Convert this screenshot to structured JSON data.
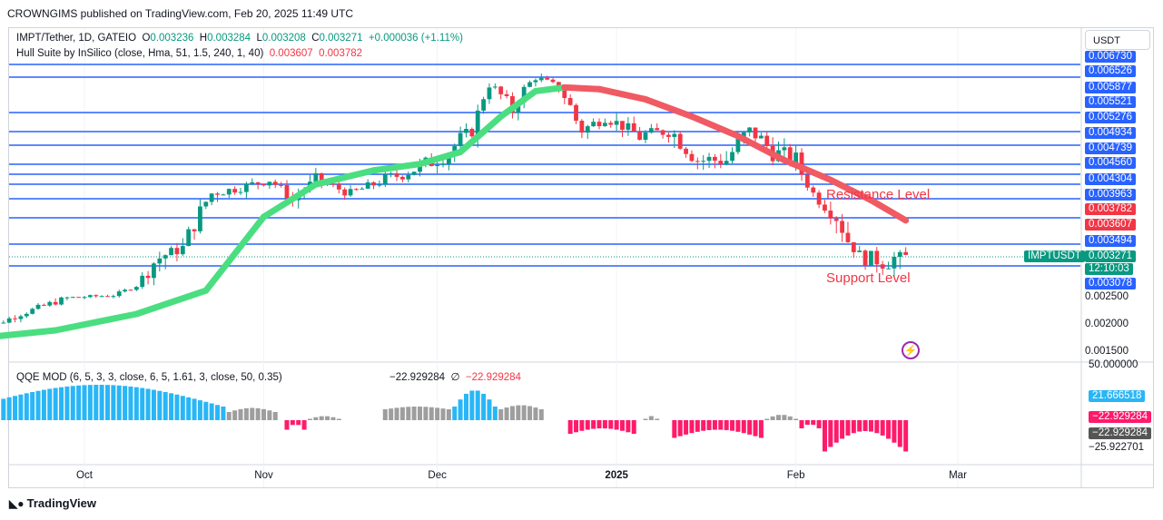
{
  "header": {
    "publisher": "CROWNGIMS published on TradingView.com, Feb 20, 2025 11:49 UTC"
  },
  "legend": {
    "symbol": "IMPT/Tether, 1D, GATEIO",
    "o_label": "O",
    "o": "0.003236",
    "h_label": "H",
    "h": "0.003284",
    "l_label": "L",
    "l": "0.003208",
    "c_label": "C",
    "c": "0.003271",
    "change": "+0.000036 (+1.11%)",
    "indicator": "Hull Suite by InSilico (close, Hma, 51, 1.5, 240, 1, 40)",
    "hull1": "0.003607",
    "hull2": "0.003782"
  },
  "currency_button": "USDT",
  "annotations": {
    "resistance": "Resistance Level",
    "support": "Support Level"
  },
  "qqe": {
    "label": "QQE MOD (6, 5, 3, 3, close, 6, 5, 1.61, 3, close, 50, 0.35)",
    "v1": "−22.929284",
    "sep": "∅",
    "v2": "−22.929284"
  },
  "footer": {
    "brand": "TradingView"
  },
  "colors": {
    "up": "#089981",
    "down": "#f23645",
    "level": "#2962ff",
    "hull_up": "#4ade80",
    "hull_down": "#f05a63",
    "qqe_blue": "#29b6f6",
    "qqe_gray": "#9e9e9e",
    "qqe_pink": "#ff1a6a",
    "tag_blue": "#2962ff",
    "tag_red": "#f23645",
    "tag_green": "#089981"
  },
  "chart_data": {
    "type": "candlestick",
    "symbol": "IMPTUSDT",
    "price_axis_labels": [
      "0.006730",
      "0.006526",
      "0.005877",
      "0.005521",
      "0.005276",
      "0.004934",
      "0.004739",
      "0.004560",
      "0.004304",
      "0.003963",
      "0.003494",
      "0.003078",
      "0.002500",
      "0.002000",
      "0.001500"
    ],
    "horizontal_levels": [
      0.00673,
      0.006526,
      0.005877,
      0.005521,
      0.005276,
      0.004934,
      0.004739,
      0.00456,
      0.004304,
      0.003963,
      0.00368,
      0.003494,
      0.00305
    ],
    "price_tags": [
      {
        "text": "0.003782",
        "price": 0.003782,
        "color": "red"
      },
      {
        "text": "0.003607",
        "price": 0.003607,
        "color": "red"
      },
      {
        "text": "0.003271",
        "price": 0.003271,
        "color": "green"
      },
      {
        "text": "12:10:03",
        "price": 0.003271,
        "color": "green"
      },
      {
        "text": "0.003078",
        "price": 0.003078,
        "color": "blue"
      }
    ],
    "symbol_tag": "IMPTUSDT",
    "x_labels": [
      {
        "text": "Oct",
        "date": "2024-10-01"
      },
      {
        "text": "Nov",
        "date": "2024-11-01"
      },
      {
        "text": "Dec",
        "date": "2024-12-01"
      },
      {
        "text": "2025",
        "date": "2025-01-01"
      },
      {
        "text": "Feb",
        "date": "2025-02-01"
      },
      {
        "text": "Mar",
        "date": "2025-03-01"
      }
    ],
    "close_path": [
      [
        "2024-09-12",
        0.00185
      ],
      [
        "2024-09-20",
        0.0022
      ],
      [
        "2024-09-28",
        0.0025
      ],
      [
        "2024-10-06",
        0.0026
      ],
      [
        "2024-10-12",
        0.0032
      ],
      [
        "2024-10-18",
        0.0034
      ],
      [
        "2024-10-23",
        0.004
      ],
      [
        "2024-10-27",
        0.0041
      ],
      [
        "2024-11-02",
        0.0043
      ],
      [
        "2024-11-06",
        0.0039
      ],
      [
        "2024-11-10",
        0.0043
      ],
      [
        "2024-11-16",
        0.004
      ],
      [
        "2024-11-22",
        0.0043
      ],
      [
        "2024-11-28",
        0.0045
      ],
      [
        "2024-12-03",
        0.0047
      ],
      [
        "2024-12-07",
        0.005
      ],
      [
        "2024-12-10",
        0.006
      ],
      [
        "2024-12-14",
        0.0054
      ],
      [
        "2024-12-18",
        0.0063
      ],
      [
        "2024-12-22",
        0.0059
      ],
      [
        "2024-12-26",
        0.005
      ],
      [
        "2024-12-30",
        0.0053
      ],
      [
        "2025-01-05",
        0.0049
      ],
      [
        "2025-01-10",
        0.005
      ],
      [
        "2025-01-15",
        0.0046
      ],
      [
        "2025-01-20",
        0.0046
      ],
      [
        "2025-01-24",
        0.005
      ],
      [
        "2025-01-28",
        0.0047
      ],
      [
        "2025-02-01",
        0.0046
      ],
      [
        "2025-02-04",
        0.004
      ],
      [
        "2025-02-08",
        0.0037
      ],
      [
        "2025-02-12",
        0.0033
      ],
      [
        "2025-02-16",
        0.00325
      ],
      [
        "2025-02-20",
        0.003271
      ]
    ],
    "hull_suite": [
      [
        "2024-09-12",
        0.00175
      ],
      [
        "2024-09-26",
        0.0019
      ],
      [
        "2024-10-10",
        0.0022
      ],
      [
        "2024-10-22",
        0.0028
      ],
      [
        "2024-11-01",
        0.0037
      ],
      [
        "2024-11-10",
        0.0042
      ],
      [
        "2024-11-20",
        0.00445
      ],
      [
        "2024-11-28",
        0.00455
      ],
      [
        "2024-12-05",
        0.0047
      ],
      [
        "2024-12-12",
        0.0053
      ],
      [
        "2024-12-18",
        0.0058
      ],
      [
        "2024-12-23",
        0.0059
      ],
      [
        "2024-12-29",
        0.00585
      ],
      [
        "2025-01-06",
        0.0056
      ],
      [
        "2025-01-14",
        0.0053
      ],
      [
        "2025-01-22",
        0.0049
      ],
      [
        "2025-01-30",
        0.0046
      ],
      [
        "2025-02-07",
        0.0043
      ],
      [
        "2025-02-14",
        0.0039
      ],
      [
        "2025-02-20",
        0.00366
      ]
    ],
    "hull_turn_date": "2024-12-23",
    "qqe_axis_labels": [
      "50.000000",
      "21.666518",
      "−22.929284",
      "−22.929284",
      "−25.922701"
    ],
    "qqe_histogram": [
      {
        "from": "2024-09-12",
        "to": "2024-10-25",
        "min": 10,
        "max": 26,
        "color": "blue"
      },
      {
        "from": "2024-10-26",
        "to": "2024-11-03",
        "min": 6,
        "max": 9,
        "color": "gray"
      },
      {
        "from": "2024-11-05",
        "to": "2024-11-08",
        "min": -7,
        "max": -3,
        "color": "pink"
      },
      {
        "from": "2024-11-09",
        "to": "2024-11-14",
        "min": 1,
        "max": 3,
        "color": "gray"
      },
      {
        "from": "2024-11-22",
        "to": "2024-12-03",
        "min": 8,
        "max": 10,
        "color": "gray"
      },
      {
        "from": "2024-12-04",
        "to": "2024-12-11",
        "min": 10,
        "max": 22,
        "color": "blue"
      },
      {
        "from": "2024-12-12",
        "to": "2024-12-19",
        "min": 8,
        "max": 11,
        "color": "gray"
      },
      {
        "from": "2024-12-24",
        "to": "2025-01-04",
        "min": -10,
        "max": -6,
        "color": "pink"
      },
      {
        "from": "2025-01-06",
        "to": "2025-01-08",
        "min": 1,
        "max": 3,
        "color": "gray"
      },
      {
        "from": "2025-01-11",
        "to": "2025-01-26",
        "min": -13,
        "max": -7,
        "color": "pink"
      },
      {
        "from": "2025-01-27",
        "to": "2025-02-01",
        "min": 1,
        "max": 4,
        "color": "gray"
      },
      {
        "from": "2025-02-02",
        "to": "2025-02-05",
        "min": -6,
        "max": -3,
        "color": "pink"
      },
      {
        "from": "2025-02-06",
        "to": "2025-02-20",
        "min": -23,
        "max": -8,
        "color": "pink"
      }
    ]
  }
}
